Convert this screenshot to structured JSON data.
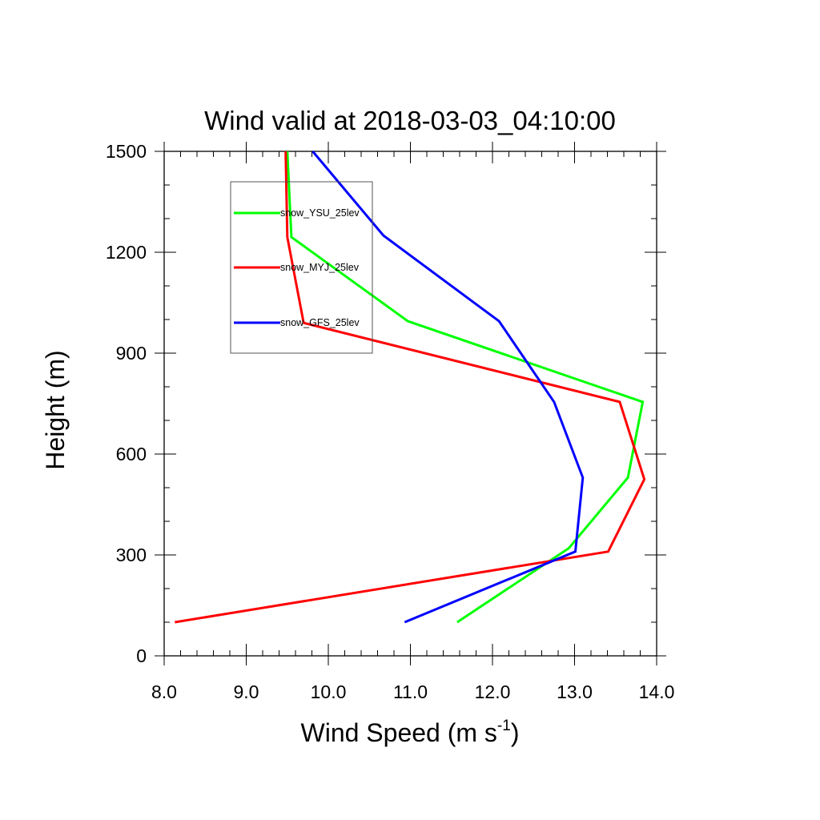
{
  "chart_data": {
    "type": "line",
    "title": "Wind valid at 2018-03-03_04:10:00",
    "xlabel": "Wind Speed (m s",
    "xlabel_sup": "-1",
    "xlabel_end": ")",
    "ylabel": "Height (m)",
    "xlim": [
      8.0,
      14.0
    ],
    "ylim": [
      0,
      1500
    ],
    "xticks": [
      8.0,
      9.0,
      10.0,
      11.0,
      12.0,
      13.0,
      14.0
    ],
    "xtick_labels": [
      "8.0",
      "9.0",
      "10.0",
      "11.0",
      "12.0",
      "13.0",
      "14.0"
    ],
    "yticks": [
      0,
      300,
      600,
      900,
      1200,
      1500
    ],
    "ytick_labels": [
      "0",
      "300",
      "600",
      "900",
      "1200",
      "1500"
    ],
    "grid": false,
    "legend_position": "top-left",
    "series": [
      {
        "name": "snow_YSU_25lev",
        "color": "#00ff00",
        "x": [
          11.57,
          12.93,
          13.65,
          13.83,
          10.97,
          9.55,
          9.5
        ],
        "y": [
          100,
          320,
          530,
          755,
          995,
          1245,
          1500
        ]
      },
      {
        "name": "snow_MYJ_25lev",
        "color": "#ff0000",
        "x": [
          8.13,
          13.41,
          13.85,
          13.55,
          9.7,
          9.5,
          9.48
        ],
        "y": [
          100,
          310,
          525,
          755,
          990,
          1245,
          1500
        ]
      },
      {
        "name": "snow_GFS_25lev",
        "color": "#0000ff",
        "x": [
          10.93,
          13.01,
          13.1,
          12.75,
          12.08,
          10.67,
          9.81
        ],
        "y": [
          100,
          310,
          530,
          755,
          995,
          1250,
          1500
        ]
      }
    ]
  }
}
